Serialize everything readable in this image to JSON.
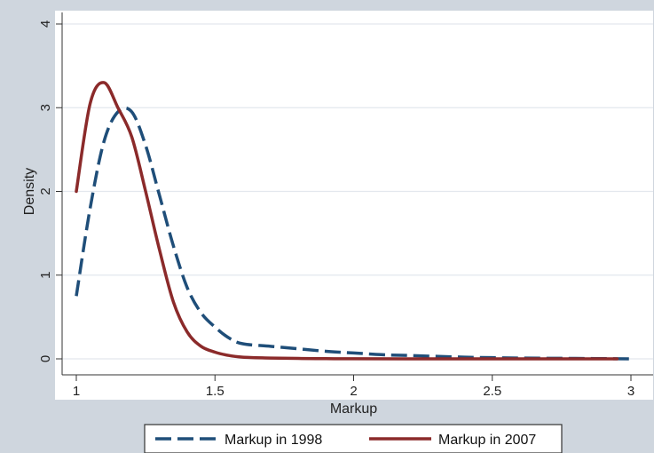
{
  "chart_data": {
    "type": "line",
    "title": "",
    "xlabel": "Markup",
    "ylabel": "Density",
    "xlim": [
      0.95,
      3.0
    ],
    "ylim": [
      -0.1,
      4.1
    ],
    "xticks": [
      1,
      1.5,
      2,
      2.5,
      3
    ],
    "xtick_labels": [
      "1",
      "1.5",
      "2",
      "2.5",
      "3"
    ],
    "yticks": [
      0,
      1,
      2,
      3,
      4
    ],
    "ytick_labels": [
      "0",
      "1",
      "2",
      "3",
      "4"
    ],
    "grid": true,
    "legend_position": "bottom",
    "series": [
      {
        "name": "Markup in 1998",
        "color": "#1f4e79",
        "style": "dashed",
        "x": [
          1.0,
          1.05,
          1.1,
          1.15,
          1.2,
          1.25,
          1.3,
          1.35,
          1.4,
          1.45,
          1.5,
          1.55,
          1.6,
          1.7,
          1.8,
          1.9,
          2.0,
          2.1,
          2.2,
          2.4,
          2.6,
          2.8,
          3.0
        ],
        "y": [
          0.75,
          1.8,
          2.6,
          2.95,
          2.95,
          2.55,
          1.95,
          1.35,
          0.85,
          0.55,
          0.38,
          0.25,
          0.18,
          0.15,
          0.12,
          0.09,
          0.07,
          0.05,
          0.04,
          0.02,
          0.01,
          0.005,
          0.0
        ]
      },
      {
        "name": "Markup in 2007",
        "color": "#8b2a2a",
        "style": "solid",
        "x": [
          1.0,
          1.05,
          1.1,
          1.15,
          1.2,
          1.25,
          1.3,
          1.35,
          1.4,
          1.45,
          1.5,
          1.55,
          1.6,
          1.7,
          1.8,
          1.9,
          2.0,
          2.2,
          2.5,
          2.8,
          2.95
        ],
        "y": [
          2.0,
          3.05,
          3.3,
          3.0,
          2.65,
          2.0,
          1.3,
          0.68,
          0.32,
          0.15,
          0.08,
          0.04,
          0.02,
          0.01,
          0.005,
          0.002,
          0.001,
          0.0,
          0.0,
          0.0,
          0.0
        ]
      }
    ]
  }
}
